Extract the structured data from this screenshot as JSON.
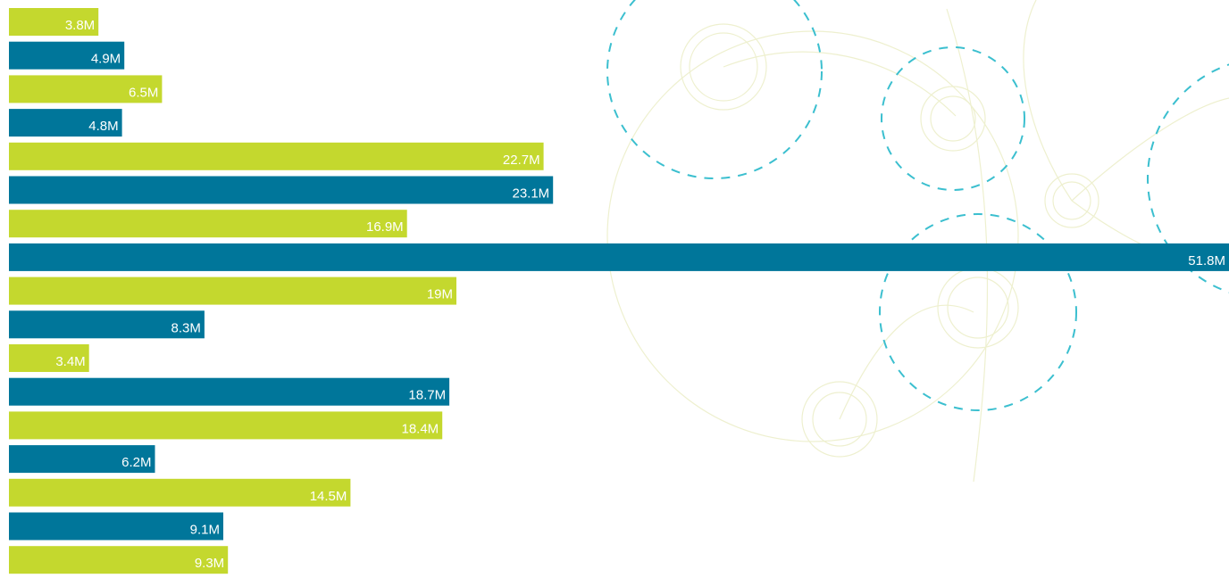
{
  "chart_data": {
    "type": "bar",
    "orientation": "horizontal",
    "values": [
      3.8,
      4.9,
      6.5,
      4.8,
      22.7,
      23.1,
      16.9,
      51.8,
      19,
      8.3,
      3.4,
      18.7,
      18.4,
      6.2,
      14.5,
      9.1,
      9.3
    ],
    "labels": [
      "3.8M",
      "4.9M",
      "6.5M",
      "4.8M",
      "22.7M",
      "23.1M",
      "16.9M",
      "51.8M",
      "19M",
      "8.3M",
      "3.4M",
      "18.7M",
      "18.4M",
      "6.2M",
      "14.5M",
      "9.1M",
      "9.3M"
    ],
    "unit": "M",
    "colors": [
      "#c4d82e",
      "#00769a"
    ],
    "xlim": [
      0,
      51.8
    ],
    "grid": false,
    "legend": "none"
  },
  "decoration": {
    "line_color": "#eef0cf",
    "dash_color": "#3bbfcf"
  }
}
